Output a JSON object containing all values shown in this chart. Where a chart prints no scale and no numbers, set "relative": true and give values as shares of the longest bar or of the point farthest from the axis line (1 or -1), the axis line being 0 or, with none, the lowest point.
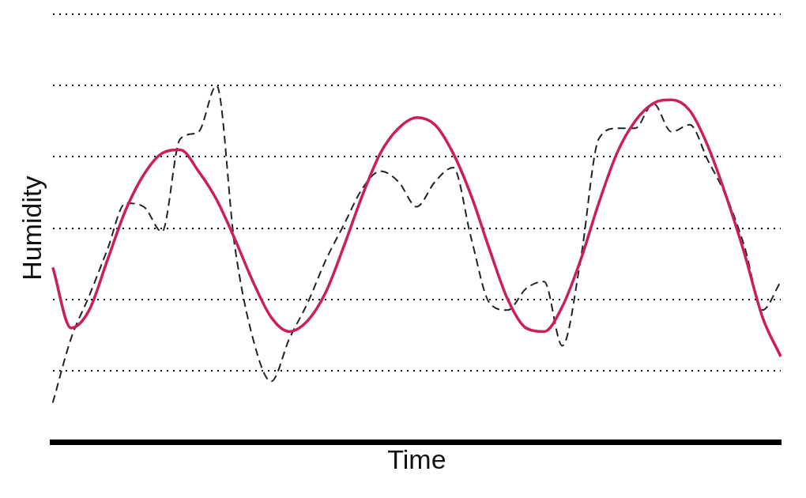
{
  "chart_data": {
    "type": "line",
    "relative": true,
    "xlabel": "Time",
    "ylabel": "Humidity",
    "grid": "y",
    "legend": false,
    "marker": "none",
    "categories": [
      null,
      null,
      null,
      null,
      null,
      null,
      null,
      null,
      null,
      null,
      null,
      null,
      null,
      null,
      null,
      null,
      null,
      null,
      null,
      null,
      null,
      null,
      null,
      null,
      null,
      null,
      null,
      null,
      null,
      null,
      null,
      null,
      null,
      null,
      null,
      null,
      null,
      null,
      null,
      null,
      null
    ],
    "series": [
      {
        "color": "#cc1f5a",
        "line_style": "solid",
        "values": [
          0.49,
          0.32,
          0.37,
          0.51,
          0.65,
          0.75,
          0.81,
          0.82,
          0.76,
          0.68,
          0.57,
          0.45,
          0.35,
          0.31,
          0.34,
          0.42,
          0.55,
          0.69,
          0.81,
          0.88,
          0.91,
          0.89,
          0.81,
          0.69,
          0.54,
          0.4,
          0.32,
          0.31,
          0.38,
          0.51,
          0.67,
          0.81,
          0.9,
          0.95,
          0.96,
          0.93,
          0.83,
          0.69,
          0.53,
          0.35,
          0.24
        ]
      },
      {
        "color": "#222222",
        "line_style": "dashed",
        "values": [
          0.11,
          0.29,
          0.41,
          0.54,
          0.67,
          0.66,
          0.59,
          0.85,
          0.87,
          1,
          0.55,
          0.29,
          0.17,
          0.29,
          0.39,
          0.51,
          0.61,
          0.71,
          0.76,
          0.73,
          0.66,
          0.73,
          0.77,
          0.57,
          0.39,
          0.37,
          0.43,
          0.45,
          0.27,
          0.51,
          0.85,
          0.88,
          0.88,
          0.95,
          0.87,
          0.89,
          0.79,
          0.69,
          0.55,
          0.37,
          0.45
        ]
      }
    ]
  }
}
